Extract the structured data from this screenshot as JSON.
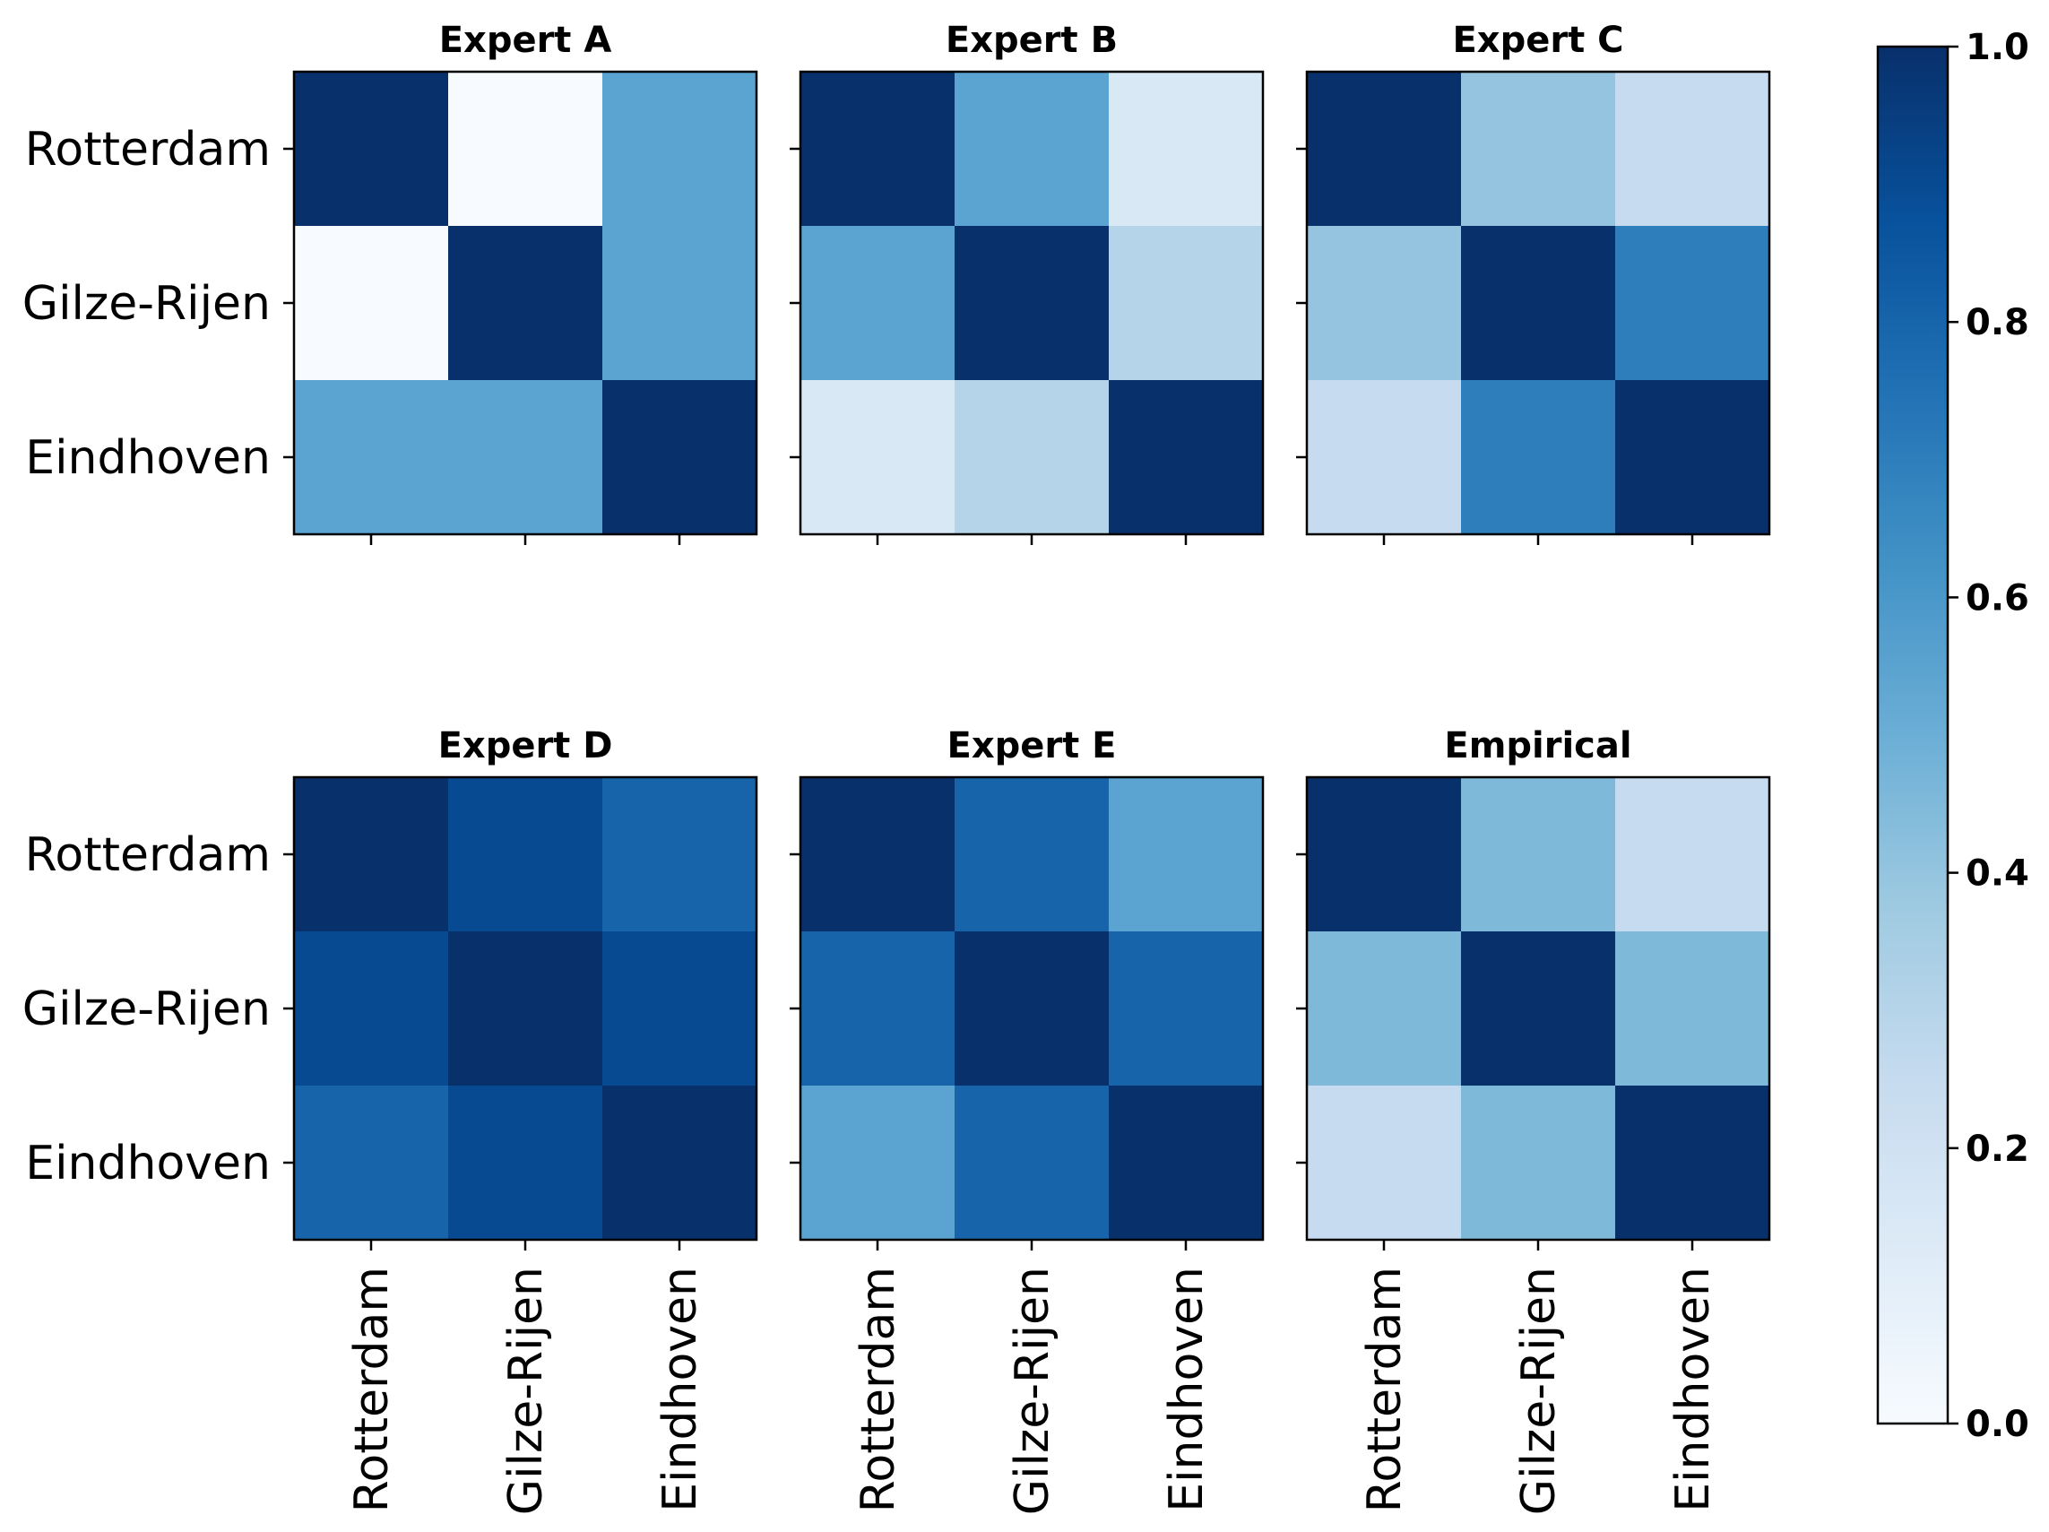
{
  "chart_data": {
    "type": "heatmap",
    "colormap": "Blues",
    "row_labels": [
      "Rotterdam",
      "Gilze-Rijen",
      "Eindhoven"
    ],
    "col_labels": [
      "Rotterdam",
      "Gilze-Rijen",
      "Eindhoven"
    ],
    "panels": [
      {
        "title": "Expert A",
        "matrix": [
          [
            1.0,
            0.0,
            0.55
          ],
          [
            0.0,
            1.0,
            0.55
          ],
          [
            0.55,
            0.55,
            1.0
          ]
        ]
      },
      {
        "title": "Expert B",
        "matrix": [
          [
            1.0,
            0.55,
            0.15
          ],
          [
            0.55,
            1.0,
            0.3
          ],
          [
            0.15,
            0.3,
            1.0
          ]
        ]
      },
      {
        "title": "Expert C",
        "matrix": [
          [
            1.0,
            0.4,
            0.25
          ],
          [
            0.4,
            1.0,
            0.7
          ],
          [
            0.25,
            0.7,
            1.0
          ]
        ]
      },
      {
        "title": "Expert D",
        "matrix": [
          [
            1.0,
            0.9,
            0.8
          ],
          [
            0.9,
            1.0,
            0.9
          ],
          [
            0.8,
            0.9,
            1.0
          ]
        ]
      },
      {
        "title": "Expert E",
        "matrix": [
          [
            1.0,
            0.8,
            0.55
          ],
          [
            0.8,
            1.0,
            0.8
          ],
          [
            0.55,
            0.8,
            1.0
          ]
        ]
      },
      {
        "title": "Empirical",
        "matrix": [
          [
            1.0,
            0.45,
            0.25
          ],
          [
            0.45,
            1.0,
            0.45
          ],
          [
            0.25,
            0.45,
            1.0
          ]
        ]
      }
    ],
    "colorbar": {
      "range": [
        0.0,
        1.0
      ],
      "ticks": [
        0.0,
        0.2,
        0.4,
        0.6,
        0.8,
        1.0
      ],
      "tick_labels": [
        "0.0",
        "0.2",
        "0.4",
        "0.6",
        "0.8",
        "1.0"
      ]
    }
  }
}
